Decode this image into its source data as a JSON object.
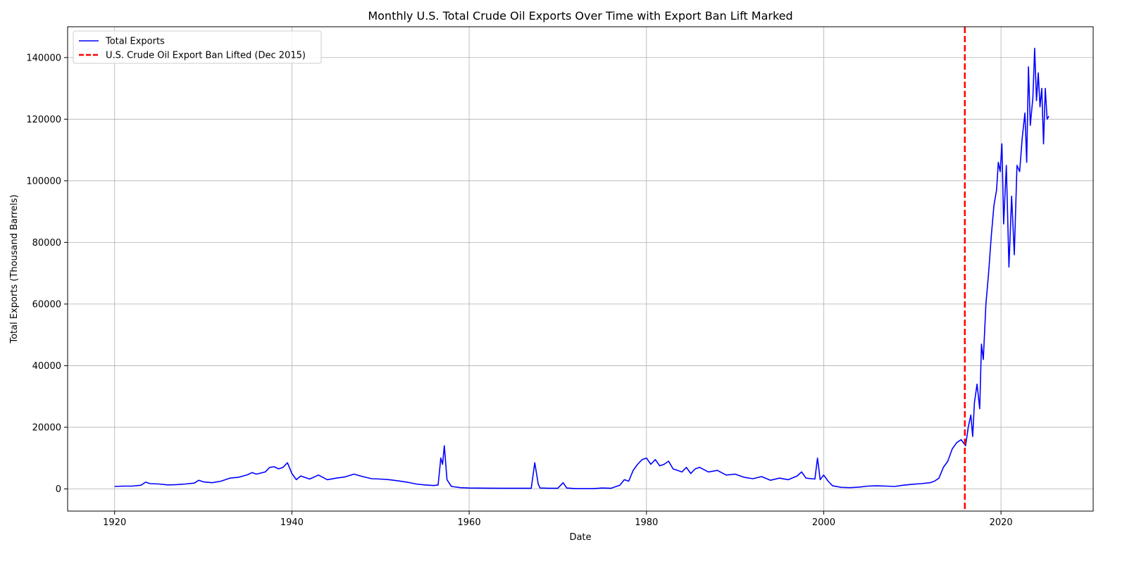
{
  "chart_data": {
    "type": "line",
    "title": "Monthly U.S. Total Crude Oil Exports Over Time with Export Ban Lift Marked",
    "xlabel": "Date",
    "ylabel": "Total Exports (Thousand Barrels)",
    "xlim": [
      1914.7,
      2030.4
    ],
    "ylim": [
      -7200,
      150000
    ],
    "x_ticks": [
      1920,
      1940,
      1960,
      1980,
      2000,
      2020
    ],
    "x_tick_labels": [
      "1920",
      "1940",
      "1960",
      "1980",
      "2000",
      "2020"
    ],
    "y_ticks": [
      0,
      20000,
      40000,
      60000,
      80000,
      100000,
      120000,
      140000
    ],
    "y_tick_labels": [
      "0",
      "20000",
      "40000",
      "60000",
      "80000",
      "100000",
      "120000",
      "140000"
    ],
    "grid": true,
    "legend_position": "top-left",
    "series": [
      {
        "name": "Total Exports",
        "color": "#0000ff",
        "points": [
          [
            1920.0,
            800
          ],
          [
            1921.0,
            900
          ],
          [
            1922.0,
            900
          ],
          [
            1923.0,
            1200
          ],
          [
            1923.5,
            2200
          ],
          [
            1924.0,
            1700
          ],
          [
            1925.0,
            1600
          ],
          [
            1926.0,
            1300
          ],
          [
            1927.0,
            1400
          ],
          [
            1928.0,
            1600
          ],
          [
            1929.0,
            1900
          ],
          [
            1929.5,
            2800
          ],
          [
            1930.0,
            2300
          ],
          [
            1931.0,
            2000
          ],
          [
            1932.0,
            2500
          ],
          [
            1933.0,
            3500
          ],
          [
            1934.0,
            3800
          ],
          [
            1935.0,
            4600
          ],
          [
            1935.5,
            5300
          ],
          [
            1936.0,
            4800
          ],
          [
            1937.0,
            5500
          ],
          [
            1937.5,
            7000
          ],
          [
            1938.0,
            7200
          ],
          [
            1938.5,
            6500
          ],
          [
            1939.0,
            7000
          ],
          [
            1939.5,
            8500
          ],
          [
            1940.0,
            5000
          ],
          [
            1940.5,
            3000
          ],
          [
            1941.0,
            4200
          ],
          [
            1942.0,
            3200
          ],
          [
            1943.0,
            4500
          ],
          [
            1944.0,
            3000
          ],
          [
            1945.0,
            3500
          ],
          [
            1946.0,
            3900
          ],
          [
            1947.0,
            4800
          ],
          [
            1948.0,
            4000
          ],
          [
            1949.0,
            3300
          ],
          [
            1950.0,
            3200
          ],
          [
            1951.0,
            3000
          ],
          [
            1952.0,
            2600
          ],
          [
            1953.0,
            2200
          ],
          [
            1954.0,
            1600
          ],
          [
            1955.0,
            1300
          ],
          [
            1956.0,
            1100
          ],
          [
            1956.5,
            1300
          ],
          [
            1956.8,
            10000
          ],
          [
            1957.0,
            8000
          ],
          [
            1957.2,
            14000
          ],
          [
            1957.5,
            3000
          ],
          [
            1958.0,
            800
          ],
          [
            1959.0,
            400
          ],
          [
            1960.0,
            300
          ],
          [
            1962.0,
            250
          ],
          [
            1964.0,
            200
          ],
          [
            1966.0,
            200
          ],
          [
            1967.0,
            200
          ],
          [
            1967.4,
            8500
          ],
          [
            1967.8,
            1500
          ],
          [
            1968.0,
            300
          ],
          [
            1969.0,
            200
          ],
          [
            1970.0,
            200
          ],
          [
            1970.6,
            2000
          ],
          [
            1971.0,
            300
          ],
          [
            1972.0,
            100
          ],
          [
            1974.0,
            100
          ],
          [
            1975.0,
            300
          ],
          [
            1976.0,
            200
          ],
          [
            1977.0,
            1200
          ],
          [
            1977.5,
            3000
          ],
          [
            1978.0,
            2500
          ],
          [
            1978.5,
            6000
          ],
          [
            1979.0,
            8000
          ],
          [
            1979.5,
            9500
          ],
          [
            1980.0,
            10000
          ],
          [
            1980.5,
            8000
          ],
          [
            1981.0,
            9500
          ],
          [
            1981.5,
            7500
          ],
          [
            1982.0,
            8000
          ],
          [
            1982.5,
            9000
          ],
          [
            1983.0,
            6500
          ],
          [
            1984.0,
            5500
          ],
          [
            1984.5,
            7000
          ],
          [
            1985.0,
            5000
          ],
          [
            1985.5,
            6500
          ],
          [
            1986.0,
            7000
          ],
          [
            1987.0,
            5500
          ],
          [
            1988.0,
            6000
          ],
          [
            1989.0,
            4500
          ],
          [
            1990.0,
            4800
          ],
          [
            1991.0,
            3800
          ],
          [
            1992.0,
            3300
          ],
          [
            1993.0,
            4000
          ],
          [
            1994.0,
            2800
          ],
          [
            1995.0,
            3500
          ],
          [
            1996.0,
            3000
          ],
          [
            1997.0,
            4200
          ],
          [
            1997.5,
            5500
          ],
          [
            1998.0,
            3500
          ],
          [
            1999.0,
            3200
          ],
          [
            1999.3,
            10000
          ],
          [
            1999.6,
            3000
          ],
          [
            2000.0,
            4500
          ],
          [
            2000.5,
            2500
          ],
          [
            2001.0,
            1000
          ],
          [
            2002.0,
            500
          ],
          [
            2003.0,
            400
          ],
          [
            2004.0,
            600
          ],
          [
            2005.0,
            900
          ],
          [
            2006.0,
            1000
          ],
          [
            2007.0,
            900
          ],
          [
            2008.0,
            800
          ],
          [
            2009.0,
            1200
          ],
          [
            2010.0,
            1500
          ],
          [
            2011.0,
            1700
          ],
          [
            2012.0,
            2000
          ],
          [
            2012.5,
            2500
          ],
          [
            2013.0,
            3500
          ],
          [
            2013.5,
            7000
          ],
          [
            2014.0,
            9000
          ],
          [
            2014.5,
            13000
          ],
          [
            2015.0,
            15000
          ],
          [
            2015.5,
            16000
          ],
          [
            2016.0,
            14000
          ],
          [
            2016.3,
            20000
          ],
          [
            2016.6,
            24000
          ],
          [
            2016.8,
            17000
          ],
          [
            2017.0,
            28000
          ],
          [
            2017.3,
            34000
          ],
          [
            2017.6,
            26000
          ],
          [
            2017.8,
            47000
          ],
          [
            2018.0,
            42000
          ],
          [
            2018.3,
            60000
          ],
          [
            2018.6,
            70000
          ],
          [
            2018.9,
            82000
          ],
          [
            2019.2,
            92000
          ],
          [
            2019.5,
            97000
          ],
          [
            2019.7,
            106000
          ],
          [
            2019.9,
            103000
          ],
          [
            2020.1,
            112000
          ],
          [
            2020.3,
            86000
          ],
          [
            2020.6,
            105000
          ],
          [
            2020.9,
            72000
          ],
          [
            2021.2,
            95000
          ],
          [
            2021.5,
            76000
          ],
          [
            2021.8,
            105000
          ],
          [
            2022.1,
            103000
          ],
          [
            2022.4,
            114000
          ],
          [
            2022.7,
            122000
          ],
          [
            2022.9,
            106000
          ],
          [
            2023.1,
            137000
          ],
          [
            2023.3,
            118000
          ],
          [
            2023.6,
            127000
          ],
          [
            2023.8,
            143000
          ],
          [
            2024.0,
            126000
          ],
          [
            2024.2,
            135000
          ],
          [
            2024.4,
            124000
          ],
          [
            2024.6,
            130000
          ],
          [
            2024.8,
            112000
          ],
          [
            2025.0,
            130000
          ],
          [
            2025.2,
            120000
          ],
          [
            2025.4,
            121000
          ]
        ]
      },
      {
        "name": "U.S. Crude Oil Export Ban Lifted (Dec 2015)",
        "color": "#ff0000",
        "type": "vline",
        "x": 2015.92
      }
    ]
  }
}
